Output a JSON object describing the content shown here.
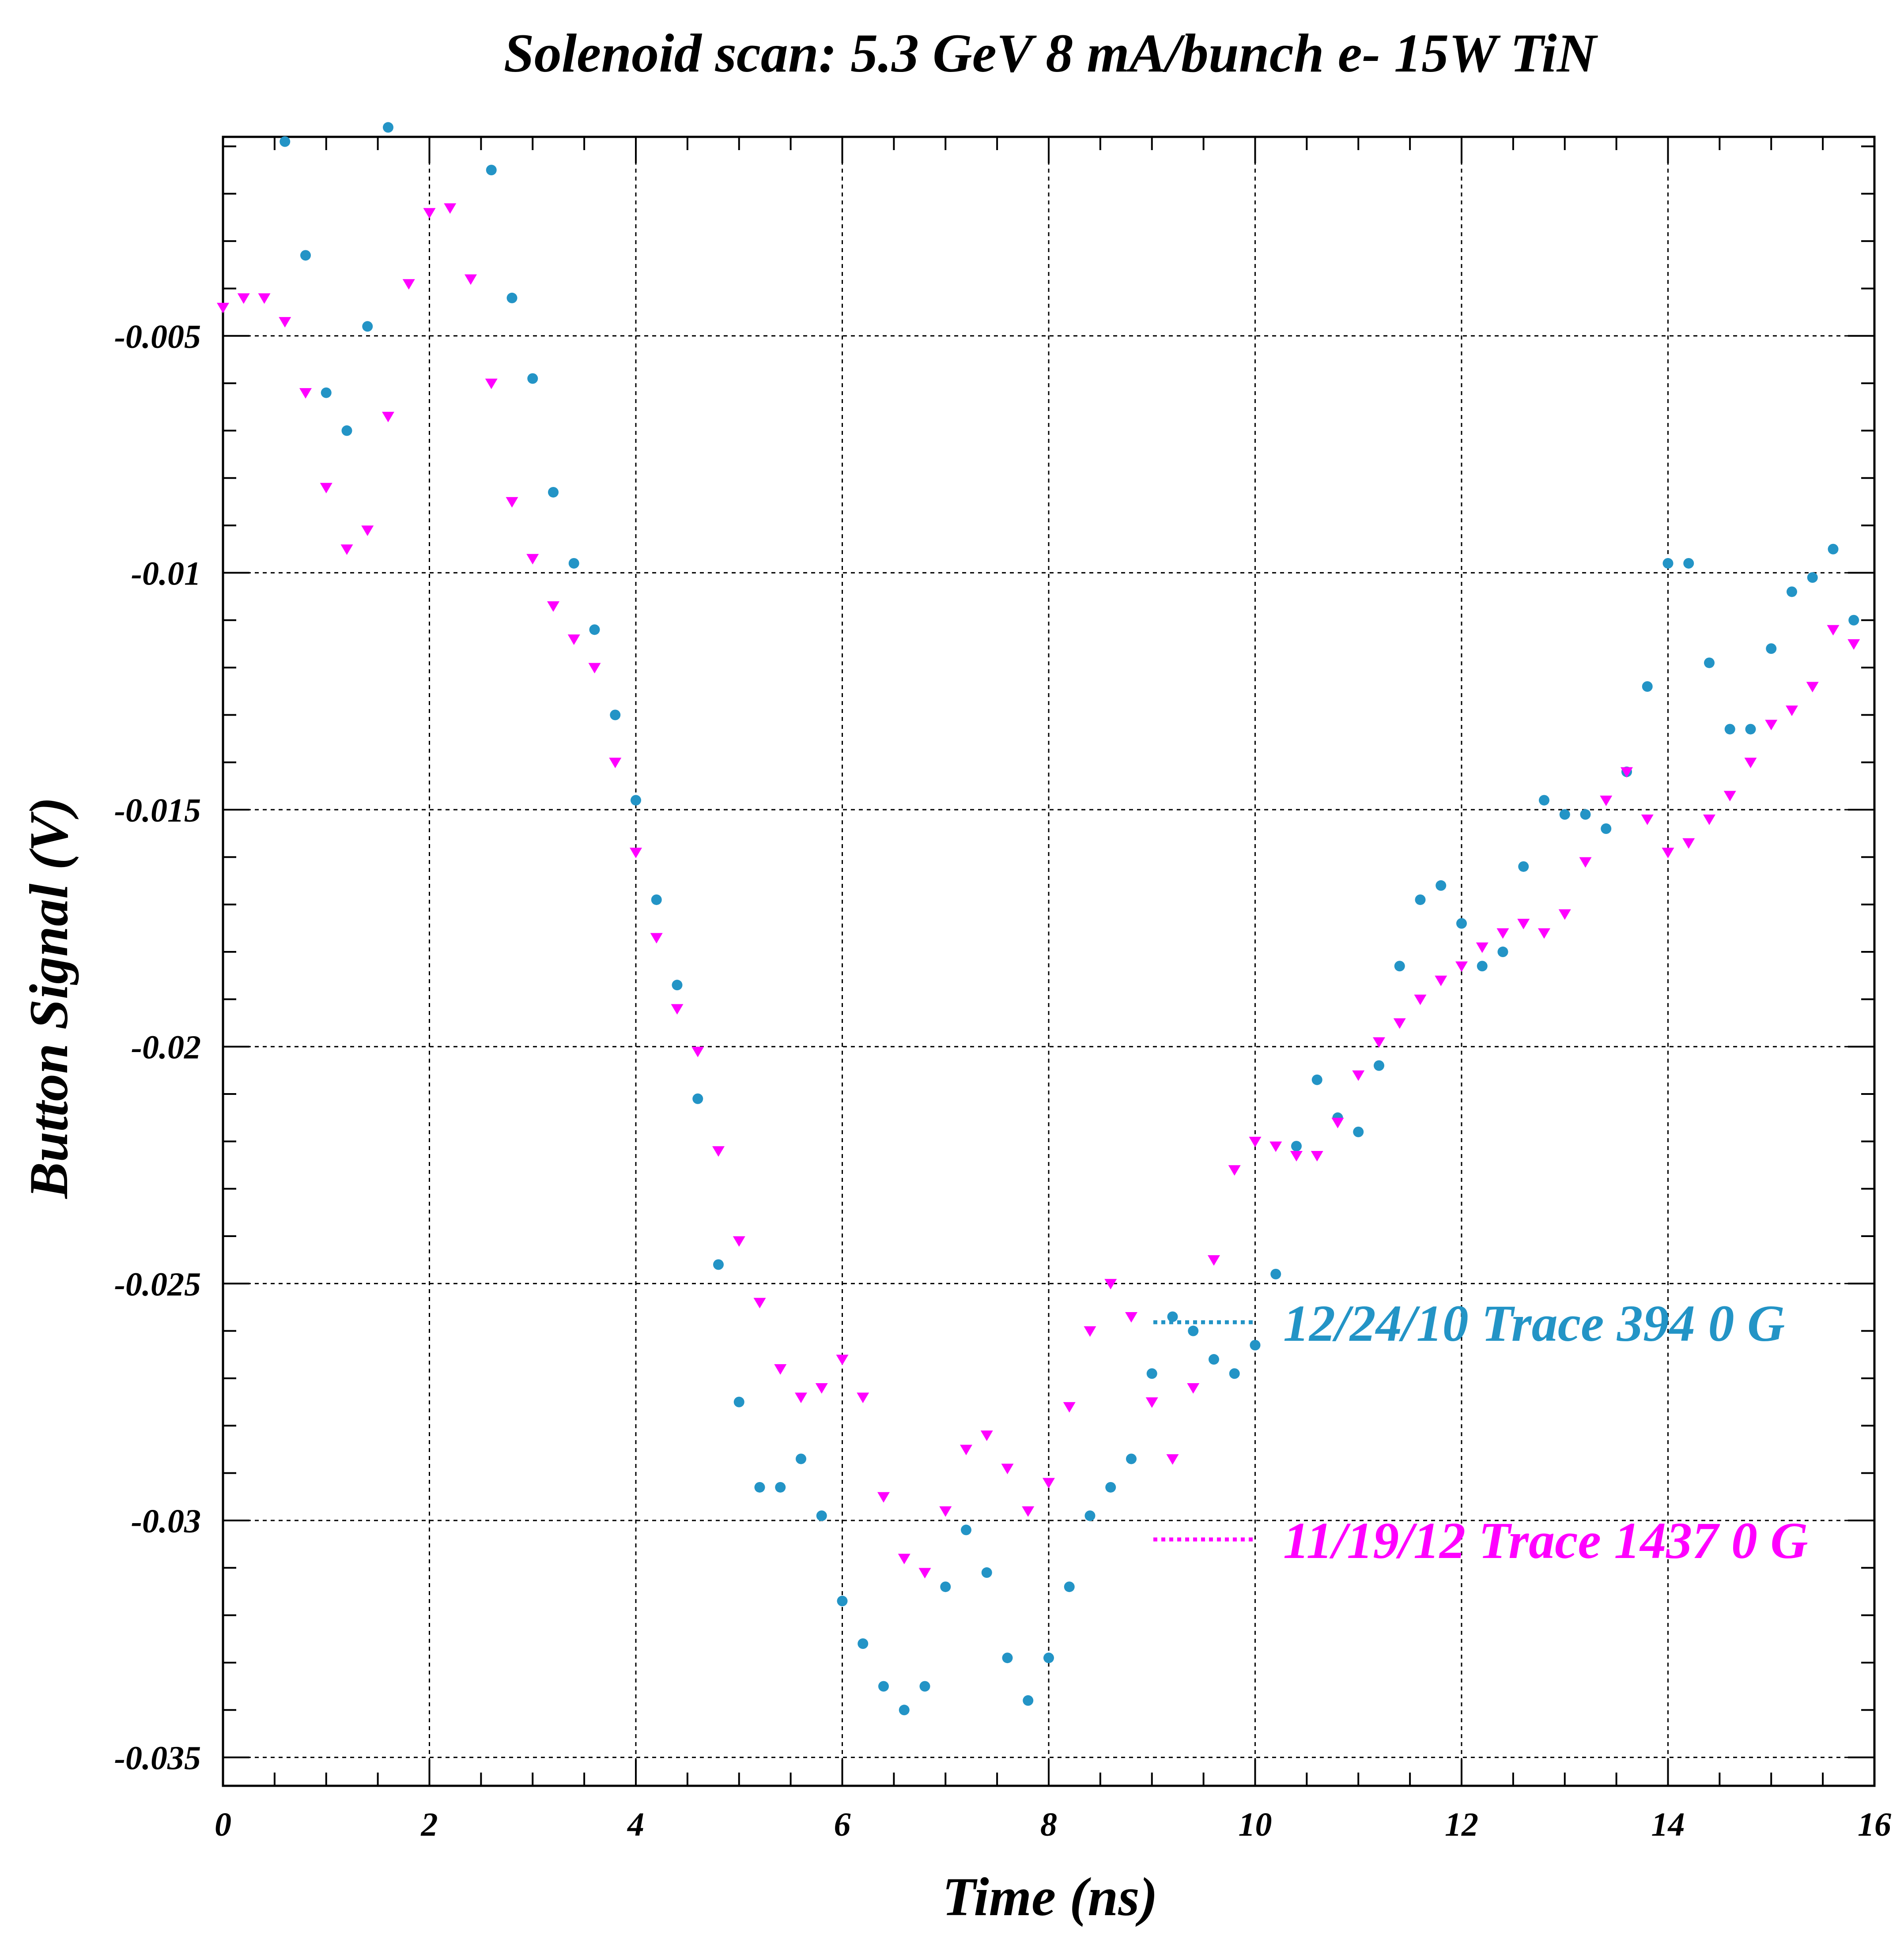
{
  "chart_data": {
    "type": "scatter",
    "title": "Solenoid scan: 5.3 GeV 8 mA/bunch e- 15W TiN",
    "xlabel": "Time (ns)",
    "ylabel": "Button Signal (V)",
    "xlim": [
      0,
      16
    ],
    "ylim": [
      -0.0356,
      -0.0008
    ],
    "xticks": [
      0,
      2,
      4,
      6,
      8,
      10,
      12,
      14,
      16
    ],
    "yticks": [
      -0.005,
      -0.01,
      -0.015,
      -0.02,
      -0.025,
      -0.03,
      -0.035
    ],
    "xtick_labels": [
      "0",
      "2",
      "4",
      "6",
      "8",
      "10",
      "12",
      "14",
      "16"
    ],
    "ytick_labels": [
      "-0.005",
      "-0.01",
      "-0.015",
      "-0.02",
      "-0.025",
      "-0.03",
      "-0.035"
    ],
    "grid": true,
    "legend_position": "lower-right",
    "series": [
      {
        "name": "12/24/10 Trace 394  0 G",
        "color": "#2394c6",
        "marker": "circle",
        "x": [
          0.6,
          0.8,
          1.0,
          1.2,
          1.4,
          1.6,
          2.6,
          2.8,
          3.0,
          3.2,
          3.4,
          3.6,
          3.8,
          4.0,
          4.2,
          4.4,
          4.6,
          4.8,
          5.0,
          5.2,
          5.4,
          5.6,
          5.8,
          6.0,
          6.2,
          6.4,
          6.6,
          6.8,
          7.0,
          7.2,
          7.4,
          7.6,
          7.8,
          8.0,
          8.2,
          8.4,
          8.6,
          8.8,
          9.0,
          9.2,
          9.4,
          9.6,
          9.8,
          10.0,
          10.2,
          10.4,
          10.6,
          10.8,
          11.0,
          11.2,
          11.4,
          11.6,
          11.8,
          12.0,
          12.2,
          12.4,
          12.6,
          12.8,
          13.0,
          13.2,
          13.4,
          13.6,
          13.8,
          14.0,
          14.2,
          14.4,
          14.6,
          14.8,
          15.0,
          15.2,
          15.4,
          15.6,
          15.8
        ],
        "y": [
          -0.0009,
          -0.0033,
          -0.0062,
          -0.007,
          -0.0048,
          -0.0006,
          -0.0015,
          -0.0042,
          -0.0059,
          -0.0083,
          -0.0098,
          -0.0112,
          -0.013,
          -0.0148,
          -0.0169,
          -0.0187,
          -0.0211,
          -0.0246,
          -0.0275,
          -0.0293,
          -0.0293,
          -0.0287,
          -0.0299,
          -0.0317,
          -0.0326,
          -0.0335,
          -0.034,
          -0.0335,
          -0.0314,
          -0.0302,
          -0.0311,
          -0.0329,
          -0.0338,
          -0.0329,
          -0.0314,
          -0.0299,
          -0.0293,
          -0.0287,
          -0.0269,
          -0.0257,
          -0.026,
          -0.0266,
          -0.0269,
          -0.0263,
          -0.0248,
          -0.0221,
          -0.0207,
          -0.0215,
          -0.0218,
          -0.0204,
          -0.0183,
          -0.0169,
          -0.0166,
          -0.0174,
          -0.0183,
          -0.018,
          -0.0162,
          -0.0148,
          -0.0151,
          -0.0151,
          -0.0154,
          -0.0142,
          -0.0124,
          -0.0098,
          -0.0098,
          -0.0119,
          -0.0133,
          -0.0133,
          -0.0116,
          -0.0104,
          -0.0101,
          -0.0095,
          -0.011
        ]
      },
      {
        "name": "11/19/12 Trace 1437  0 G",
        "color": "#ff00ff",
        "marker": "triangle-down",
        "x": [
          0.0,
          0.2,
          0.4,
          0.6,
          0.8,
          1.0,
          1.2,
          1.4,
          1.6,
          1.8,
          2.0,
          2.2,
          2.4,
          2.6,
          2.8,
          3.0,
          3.2,
          3.4,
          3.6,
          3.8,
          4.0,
          4.2,
          4.4,
          4.6,
          4.8,
          5.0,
          5.2,
          5.4,
          5.6,
          5.8,
          6.0,
          6.2,
          6.4,
          6.6,
          6.8,
          7.0,
          7.2,
          7.4,
          7.6,
          7.8,
          8.0,
          8.2,
          8.4,
          8.6,
          8.8,
          9.0,
          9.2,
          9.4,
          9.6,
          9.8,
          10.0,
          10.2,
          10.4,
          10.6,
          10.8,
          11.0,
          11.2,
          11.4,
          11.6,
          11.8,
          12.0,
          12.2,
          12.4,
          12.6,
          12.8,
          13.0,
          13.2,
          13.4,
          13.6,
          13.8,
          14.0,
          14.2,
          14.4,
          14.6,
          14.8,
          15.0,
          15.2,
          15.4,
          15.6,
          15.8
        ],
        "y": [
          -0.0044,
          -0.0042,
          -0.0042,
          -0.0047,
          -0.0062,
          -0.0082,
          -0.0095,
          -0.0091,
          -0.0067,
          -0.0039,
          -0.0024,
          -0.0023,
          -0.0038,
          -0.006,
          -0.0085,
          -0.0097,
          -0.0107,
          -0.0114,
          -0.012,
          -0.014,
          -0.0159,
          -0.0177,
          -0.0192,
          -0.0201,
          -0.0222,
          -0.0241,
          -0.0254,
          -0.0268,
          -0.0274,
          -0.0272,
          -0.0266,
          -0.0274,
          -0.0295,
          -0.0308,
          -0.0311,
          -0.0298,
          -0.0285,
          -0.0282,
          -0.0289,
          -0.0298,
          -0.0292,
          -0.0276,
          -0.026,
          -0.025,
          -0.0257,
          -0.0275,
          -0.0287,
          -0.0272,
          -0.0245,
          -0.0226,
          -0.022,
          -0.0221,
          -0.0223,
          -0.0223,
          -0.0216,
          -0.0206,
          -0.0199,
          -0.0195,
          -0.019,
          -0.0186,
          -0.0183,
          -0.0179,
          -0.0176,
          -0.0174,
          -0.0176,
          -0.0172,
          -0.0161,
          -0.0148,
          -0.0142,
          -0.0152,
          -0.0159,
          -0.0157,
          -0.0152,
          -0.0147,
          -0.014,
          -0.0132,
          -0.0129,
          -0.0124,
          -0.0112,
          -0.0115
        ]
      }
    ]
  }
}
